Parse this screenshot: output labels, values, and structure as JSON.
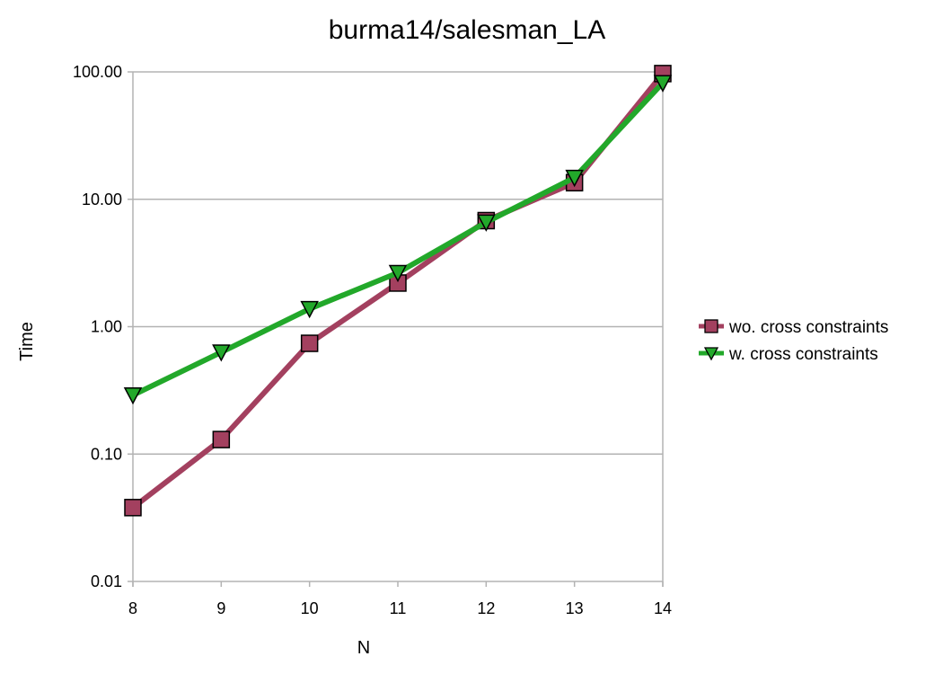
{
  "chart_data": {
    "type": "line",
    "title": "burma14/salesman_LA",
    "xlabel": "N",
    "ylabel": "Time",
    "x": [
      8,
      9,
      10,
      11,
      12,
      13,
      14
    ],
    "xlim": [
      8,
      14
    ],
    "ylim": [
      0.01,
      100
    ],
    "yscale": "log",
    "yticks": [
      0.01,
      0.1,
      1,
      10,
      100
    ],
    "ytick_labels": [
      "0.01",
      "0.10",
      "1.00",
      "10.00",
      "100.00"
    ],
    "xtick_labels": [
      "8",
      "9",
      "10",
      "11",
      "12",
      "13",
      "14"
    ],
    "grid": "horizontal",
    "legend_position": "right",
    "series": [
      {
        "name": "wo. cross constraints",
        "marker": "square",
        "color": "#a3405f",
        "values": [
          0.038,
          0.13,
          0.74,
          2.2,
          6.8,
          13.5,
          97
        ]
      },
      {
        "name": "w. cross constraints",
        "marker": "triangle-down",
        "color": "#22a82a",
        "values": [
          0.29,
          0.63,
          1.38,
          2.65,
          6.6,
          14.8,
          82
        ]
      }
    ]
  }
}
